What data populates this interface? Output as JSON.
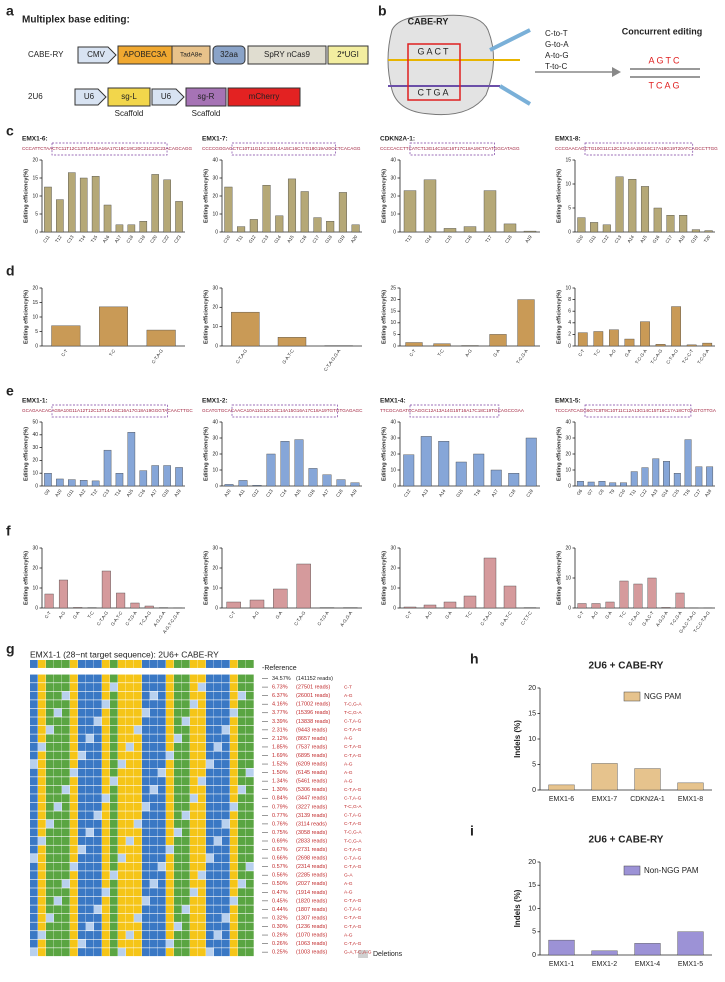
{
  "panel_labels": [
    "a",
    "b",
    "c",
    "d",
    "e",
    "f",
    "g",
    "h",
    "i"
  ],
  "panel_a": {
    "title": "Multiplex base editing:",
    "construct1": {
      "name": "CABE-RY",
      "parts": [
        "CMV",
        "APOBEC3A",
        "TadA8e",
        "32aa",
        "SpRY nCas9",
        "2*UGI"
      ]
    },
    "construct2": {
      "name": "2U6",
      "parts": [
        "U6",
        "sg-L",
        "U6",
        "sg-R",
        "mCherry"
      ],
      "scaffolds": [
        "Scaffold",
        "Scaffold"
      ]
    }
  },
  "panel_b": {
    "label": "CABE-RY",
    "top_strand": "GACT",
    "bottom_strand": "CTGA",
    "conversions": [
      "C-to-T",
      "G-to-A",
      "A-to-G",
      "T-to-C"
    ],
    "result_title": "Concurrent editing",
    "result_top": "AGTC",
    "result_bottom": "TCAG"
  },
  "panel_g": {
    "title": "EMX1-1 (28~nt target sequence): 2U6+ CABE-RY",
    "reference_label": "-Reference",
    "legend": "Deletions",
    "rows": [
      {
        "percent": "34.57%",
        "reads": "(141152 reads)"
      },
      {
        "percent": "6.73%",
        "reads": "(27501 reads)",
        "type": "C-T"
      },
      {
        "percent": "6.37%",
        "reads": "(26001 reads)",
        "type": "A-G"
      },
      {
        "percent": "4.16%",
        "reads": "(17002 reads)",
        "type": "T-C,G-A"
      },
      {
        "percent": "3.77%",
        "reads": "(15396 reads)",
        "type": "T-C,G-A"
      },
      {
        "percent": "3.39%",
        "reads": "(13838 reads)",
        "type": "C-T,A-G"
      },
      {
        "percent": "2.31%",
        "reads": "(9443 reads)",
        "type": "C-T,A-G"
      },
      {
        "percent": "2.12%",
        "reads": "(8657 reads)",
        "type": "A-G"
      },
      {
        "percent": "1.85%",
        "reads": "(7537 reads)",
        "type": "C-T,A-G"
      },
      {
        "percent": "1.69%",
        "reads": "(6895 reads)",
        "type": "C-T,A-G"
      },
      {
        "percent": "1.52%",
        "reads": "(6209 reads)",
        "type": "A-G"
      },
      {
        "percent": "1.50%",
        "reads": "(6145 reads)",
        "type": "A-G"
      },
      {
        "percent": "1.34%",
        "reads": "(5461 reads)",
        "type": "A-G"
      },
      {
        "percent": "1.30%",
        "reads": "(5306 reads)",
        "type": "C-T,A-G"
      },
      {
        "percent": "0.84%",
        "reads": "(3447 reads)",
        "type": "C-T,A-G"
      },
      {
        "percent": "0.79%",
        "reads": "(3227 reads)",
        "type": "T-C,G-A"
      },
      {
        "percent": "0.77%",
        "reads": "(3139 reads)",
        "type": "C-T,A-G"
      },
      {
        "percent": "0.76%",
        "reads": "(3114 reads)",
        "type": "C-T,A-G"
      },
      {
        "percent": "0.75%",
        "reads": "(3058 reads)",
        "type": "T-C,G-A"
      },
      {
        "percent": "0.69%",
        "reads": "(2833 reads)",
        "type": "T-C,G-A"
      },
      {
        "percent": "0.67%",
        "reads": "(2731 reads)",
        "type": "C-T,A-G"
      },
      {
        "percent": "0.66%",
        "reads": "(2698 reads)",
        "type": "C-T,A-G"
      },
      {
        "percent": "0.57%",
        "reads": "(2314 reads)",
        "type": "C-T,A-G"
      },
      {
        "percent": "0.56%",
        "reads": "(2285 reads)",
        "type": "G-A"
      },
      {
        "percent": "0.50%",
        "reads": "(2027 reads)",
        "type": "A-G"
      },
      {
        "percent": "0.47%",
        "reads": "(1914 reads)",
        "type": "A-G"
      },
      {
        "percent": "0.45%",
        "reads": "(1820 reads)",
        "type": "C-T,A-G"
      },
      {
        "percent": "0.44%",
        "reads": "(1807 reads)",
        "type": "C-T,A-G"
      },
      {
        "percent": "0.32%",
        "reads": "(1307 reads)",
        "type": "C-T,A-G"
      },
      {
        "percent": "0.30%",
        "reads": "(1236 reads)",
        "type": "C-T,A-G"
      },
      {
        "percent": "0.26%",
        "reads": "(1070 reads)",
        "type": "A-G"
      },
      {
        "percent": "0.26%",
        "reads": "(1063 reads)",
        "type": "C-T,A-G"
      },
      {
        "percent": "0.25%",
        "reads": "(1003 reads)",
        "type": "G-A,T-C,A-G"
      }
    ]
  },
  "chart_data": [
    {
      "type": "bar",
      "title": "EMX1-6:",
      "sequence": "CCCATTCTAACTC11T12C13T14T15A16A17C18C19C20C21C22C23ACAGCAGG",
      "categories": [
        "C11",
        "T12",
        "C13",
        "T14",
        "T15",
        "A16",
        "A17",
        "C18",
        "C19",
        "C20",
        "C22",
        "C23"
      ],
      "values": [
        12.5,
        9,
        16.5,
        15,
        15.5,
        7.5,
        2,
        2,
        3,
        16,
        14.5,
        8.5
      ],
      "color": "#b5a877",
      "ylim": [
        0,
        20
      ],
      "yticks": [
        0,
        5,
        10,
        15,
        20
      ],
      "ylabel": "Editing efficiency(%)"
    },
    {
      "type": "bar",
      "title": "EMX1-7:",
      "sequence": "CCCCGGGAGCTC10T11G12C13G14A15C16C17G18G19A20CCTCACAGG",
      "categories": [
        "C10",
        "T11",
        "G12",
        "C13",
        "G14",
        "A15",
        "C16",
        "C17",
        "G18",
        "G19",
        "A20"
      ],
      "values": [
        25,
        3,
        7,
        26,
        9,
        29.5,
        22.5,
        8,
        6,
        22,
        4
      ],
      "color": "#b5a877",
      "ylim": [
        0,
        40
      ],
      "yticks": [
        0,
        10,
        20,
        30,
        40
      ],
      "ylabel": "Editing efficiency(%)"
    },
    {
      "type": "bar",
      "title": "CDKN2A-1:",
      "sequence": "CCCCACCTTCATCT13G14C15C16T17C18A19CTCATGGCATAGG",
      "categories": [
        "T13",
        "G14",
        "C15",
        "C16",
        "T17",
        "C18",
        "A19"
      ],
      "values": [
        23,
        29,
        2,
        3,
        23,
        4.5,
        0.5
      ],
      "color": "#b5a877",
      "ylim": [
        0,
        40
      ],
      "yticks": [
        0,
        10,
        20,
        30,
        40
      ],
      "ylabel": "Editing efficiency(%)"
    },
    {
      "type": "bar",
      "title": "EMX1-8:",
      "sequence": "CCCGAACAGCTG10G11C12C13A14A15G16C17A18G19T20ATCAGCCTTGG",
      "categories": [
        "G10",
        "G11",
        "C12",
        "C13",
        "A14",
        "A15",
        "G16",
        "C17",
        "A18",
        "G19",
        "T20"
      ],
      "values": [
        3,
        2,
        1.5,
        11.5,
        11,
        9.5,
        5,
        3.5,
        3.5,
        0.5,
        0.3
      ],
      "color": "#b5a877",
      "ylim": [
        0,
        15
      ],
      "yticks": [
        0,
        5,
        10,
        15
      ],
      "ylabel": "Editing efficiency(%)"
    },
    {
      "type": "bar",
      "categories": [
        "C-T",
        "T-C",
        "C-T,A-G"
      ],
      "values": [
        7,
        13.5,
        5.5
      ],
      "color": "#c99a56",
      "ylim": [
        0,
        20
      ],
      "yticks": [
        0,
        5,
        10,
        15,
        20
      ],
      "ylabel": "Editing efficiency(%)"
    },
    {
      "type": "bar",
      "categories": [
        "C-T,A-G",
        "G-A,T-C",
        "C-T,A-G,G-A"
      ],
      "values": [
        17.5,
        4.5,
        0.2
      ],
      "color": "#c99a56",
      "ylim": [
        0,
        30
      ],
      "yticks": [
        0,
        10,
        20,
        30
      ],
      "ylabel": "Editing efficiency(%)"
    },
    {
      "type": "bar",
      "categories": [
        "C-T",
        "T-C",
        "A-G",
        "G-A",
        "T-C,G-A"
      ],
      "values": [
        1.5,
        1,
        0.2,
        5,
        20
      ],
      "color": "#c99a56",
      "ylim": [
        0,
        25
      ],
      "yticks": [
        0,
        5,
        10,
        15,
        20,
        25
      ],
      "ylabel": "Editing efficiency(%)"
    },
    {
      "type": "bar",
      "categories": [
        "C-T",
        "T-C",
        "A-G",
        "G-A",
        "T-C-G-A",
        "T-C-A-G",
        "C-T-A-G",
        "T-C-C-T",
        "T-C-G-A"
      ],
      "values": [
        2.3,
        2.5,
        2.8,
        1.2,
        4.2,
        0.3,
        6.8,
        0.2,
        0.5
      ],
      "color": "#c99a56",
      "ylim": [
        0,
        10
      ],
      "yticks": [
        0,
        2,
        4,
        6,
        8,
        10
      ],
      "ylabel": "Editing efficiency(%)"
    },
    {
      "type": "bar",
      "title": "EMX1-1:",
      "sequence": "GCAGAACACAG9A10G11A12T12C13T14A15C16A17G18A19GGGTACAACTTGC",
      "categories": [
        "G9",
        "A10",
        "G11",
        "A12",
        "T12",
        "C13",
        "T14",
        "A15",
        "C16",
        "A17",
        "G18",
        "A19"
      ],
      "values": [
        10,
        5.5,
        5,
        4.5,
        4,
        28,
        10,
        42,
        12,
        16,
        16,
        14.5
      ],
      "color": "#86a6d8",
      "ylim": [
        0,
        50
      ],
      "yticks": [
        0,
        10,
        20,
        30,
        40,
        50
      ],
      "ylabel": "Editing efficiency(%)"
    },
    {
      "type": "bar",
      "title": "EMX1-2:",
      "sequence": "GCATGTGCACAACA10A11G12C13C14A15G16A17C18A19TGTGTGAGAGC",
      "categories": [
        "A10",
        "A11",
        "G12",
        "C13",
        "C14",
        "A15",
        "G16",
        "A17",
        "C18",
        "A19"
      ],
      "values": [
        1,
        3.5,
        0.5,
        20,
        28,
        29,
        11,
        7,
        4,
        2
      ],
      "color": "#86a6d8",
      "ylim": [
        0,
        40
      ],
      "yticks": [
        0,
        10,
        20,
        30,
        40
      ],
      "ylabel": "Editing efficiency(%)"
    },
    {
      "type": "bar",
      "title": "EMX1-4:",
      "sequence": "TTCGCAGATCCAGGC12A13A14G15T16A17C18C19TGCAGCCGAA",
      "categories": [
        "C12",
        "A13",
        "A14",
        "G15",
        "T16",
        "A17",
        "C18",
        "C19"
      ],
      "values": [
        19.5,
        31,
        28,
        15,
        20,
        10,
        8,
        30
      ],
      "color": "#86a6d8",
      "ylim": [
        0,
        40
      ],
      "yticks": [
        0,
        10,
        20,
        30,
        40
      ],
      "ylabel": "Editing efficiency(%)"
    },
    {
      "type": "bar",
      "title": "EMX1-5:",
      "sequence": "TCCCATCAGG6G7C8T9C10T11C12A13G14C15T16C17A18CTGAGTGTTGA",
      "categories": [
        "G6",
        "G7",
        "C8",
        "T9",
        "C10",
        "T11",
        "C12",
        "A13",
        "G14",
        "C15",
        "T16",
        "C17",
        "A18"
      ],
      "values": [
        3,
        2.5,
        3,
        2,
        2,
        9,
        11.5,
        17,
        15.5,
        8,
        29,
        12,
        12
      ],
      "color": "#86a6d8",
      "ylim": [
        0,
        40
      ],
      "yticks": [
        0,
        10,
        20,
        30,
        40
      ],
      "ylabel": "Editing efficiency(%)"
    },
    {
      "type": "bar",
      "categories": [
        "C-T",
        "A-G",
        "G-A",
        "T-C",
        "C-T,A-G",
        "G-A,T-C",
        "C-T,G-A",
        "T-C,A-G",
        "A-G,G-A",
        "A-G,T-C,G-A"
      ],
      "values": [
        7,
        14,
        0.3,
        0.2,
        18.5,
        7.5,
        2.5,
        1,
        0.2,
        0.1
      ],
      "color": "#d59a9c",
      "ylim": [
        0,
        30
      ],
      "yticks": [
        0,
        10,
        20,
        30
      ],
      "ylabel": "Editing efficiency(%)"
    },
    {
      "type": "bar",
      "categories": [
        "C-T",
        "A-G",
        "G-A",
        "C-T,A-G",
        "C-T,G-A",
        "A-G,G-A"
      ],
      "values": [
        3,
        4,
        9.5,
        22,
        0.2,
        0.2
      ],
      "color": "#d59a9c",
      "ylim": [
        0,
        30
      ],
      "yticks": [
        0,
        10,
        20,
        30
      ],
      "ylabel": "Editing efficiency(%)"
    },
    {
      "type": "bar",
      "categories": [
        "C-T",
        "A-G",
        "G-A",
        "T-C",
        "C-T,A-G",
        "G-A,T-C",
        "C-T,T-C"
      ],
      "values": [
        0.5,
        1.5,
        3,
        6,
        25,
        11,
        0.2
      ],
      "color": "#d59a9c",
      "ylim": [
        0,
        30
      ],
      "yticks": [
        0,
        10,
        20,
        30
      ],
      "ylabel": "Editing efficiency(%)"
    },
    {
      "type": "bar",
      "categories": [
        "C-T",
        "A-G",
        "G-A",
        "T-C",
        "C-T,A-G",
        "G-A,C-T",
        "A-G,G-A",
        "T-C,G-A",
        "G-A,C-T,A-G",
        "T-C,C-T,A-G"
      ],
      "values": [
        1.5,
        1.5,
        2,
        9,
        8,
        10,
        0.2,
        5,
        0.1,
        0.1
      ],
      "color": "#d59a9c",
      "ylim": [
        0,
        20
      ],
      "yticks": [
        0,
        10,
        20
      ],
      "ylabel": "Editing efficiency(%)"
    },
    {
      "type": "bar",
      "title": "2U6 + CABE-RY",
      "categories": [
        "EMX1-6",
        "EMX1-7",
        "CDKN2A-1",
        "EMX1-8"
      ],
      "series": [
        {
          "name": "NGG PAM",
          "color": "#e6c38d",
          "values": [
            1,
            5.2,
            4.2,
            1.4
          ]
        }
      ],
      "ylim": [
        0,
        20
      ],
      "yticks": [
        0,
        5,
        10,
        15,
        20
      ],
      "ylabel": "Indels (%)"
    },
    {
      "type": "bar",
      "title": "2U6 + CABE-RY",
      "categories": [
        "EMX1-1",
        "EMX1-2",
        "EMX1-4",
        "EMX1-5"
      ],
      "series": [
        {
          "name": "Non-NGG PAM",
          "color": "#9c92d6",
          "values": [
            3.2,
            0.9,
            2.5,
            5
          ]
        }
      ],
      "ylim": [
        0,
        20
      ],
      "yticks": [
        0,
        5,
        10,
        15,
        20
      ],
      "ylabel": "Indels (%)"
    }
  ]
}
